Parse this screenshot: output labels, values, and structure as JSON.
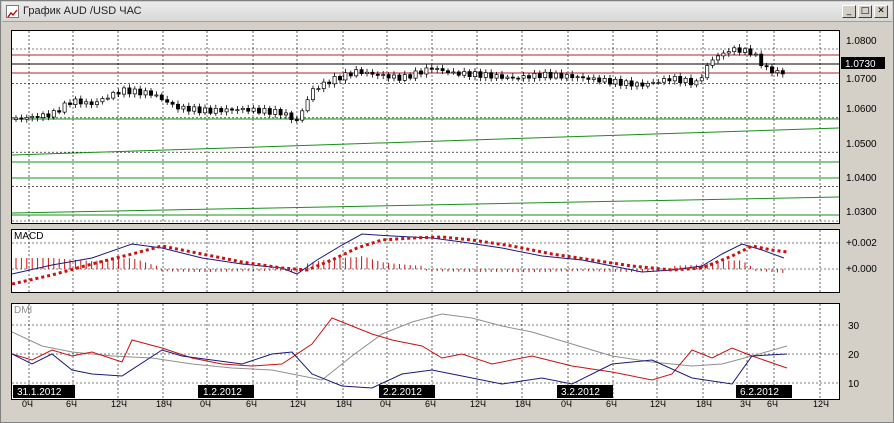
{
  "window": {
    "title": "График AUD /USD  ЧАС",
    "minimize_icon": "minimize-icon",
    "maximize_icon": "maximize-icon",
    "close_icon": "close-icon"
  },
  "price_pane": {
    "y_ticks": [
      "1.0800",
      "1.0700",
      "1.0600",
      "1.0500",
      "1.0400",
      "1.0300"
    ],
    "current_price_label": "1.0730",
    "colors": {
      "bull": "#ffffff",
      "bear": "#000000",
      "resistance": "#b22222",
      "trend": "#1a8f1a"
    }
  },
  "macd_pane": {
    "label": "MACD",
    "y_ticks": [
      "+0.002",
      "+0.000"
    ],
    "colors": {
      "macd_line": "#1a1a80",
      "signal_line": "#cc1111",
      "histogram": "#cc1111"
    }
  },
  "dmi_pane": {
    "label": "DMI",
    "y_ticks": [
      "30",
      "20",
      "10"
    ],
    "colors": {
      "plus_di": "#cc1111",
      "minus_di": "#1a1a80",
      "adx": "#909090"
    }
  },
  "time_axis": {
    "date_labels": [
      "31.1.2012",
      "1.2.2012",
      "2.2.2012",
      "3.2.2012",
      "6.2.2012"
    ],
    "hour_labels": [
      "0Ч",
      "6Ч",
      "12Ч",
      "18Ч",
      "0Ч",
      "6Ч",
      "12Ч",
      "18Ч",
      "0Ч",
      "6Ч",
      "12Ч",
      "18Ч",
      "0Ч",
      "6Ч",
      "12Ч",
      "18Ч",
      "3Ч",
      "6Ч",
      "12Ч"
    ]
  }
}
